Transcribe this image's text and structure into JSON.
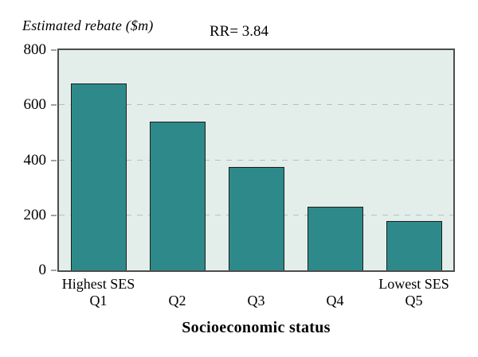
{
  "header": {
    "y_axis_title": "Estimated rebate ($m)",
    "annotation": "RR= 3.84"
  },
  "x_axis_title": "Socioeconomic status",
  "chart_data": {
    "type": "bar",
    "title": "",
    "annotation": "RR= 3.84",
    "ylabel": "Estimated rebate ($m)",
    "xlabel": "Socioeconomic status",
    "categories": [
      "Q1",
      "Q2",
      "Q3",
      "Q4",
      "Q5"
    ],
    "category_top_labels": [
      "Highest SES",
      "",
      "",
      "",
      "Lowest SES"
    ],
    "values": [
      680,
      540,
      375,
      230,
      180
    ],
    "ylim": [
      0,
      800
    ],
    "yticks": [
      0,
      200,
      400,
      600,
      800
    ],
    "gridlines": [
      200,
      400,
      600
    ],
    "grid_style": "horizontal dashed",
    "legend_position": "none",
    "colors": {
      "bar_fill": "#2e8a8a",
      "bar_border": "#1c1c1c",
      "plot_background": "#e3eeea",
      "plot_border": "#4d4d4d",
      "gridline": "#b3c1bd",
      "text": "#000000"
    }
  }
}
